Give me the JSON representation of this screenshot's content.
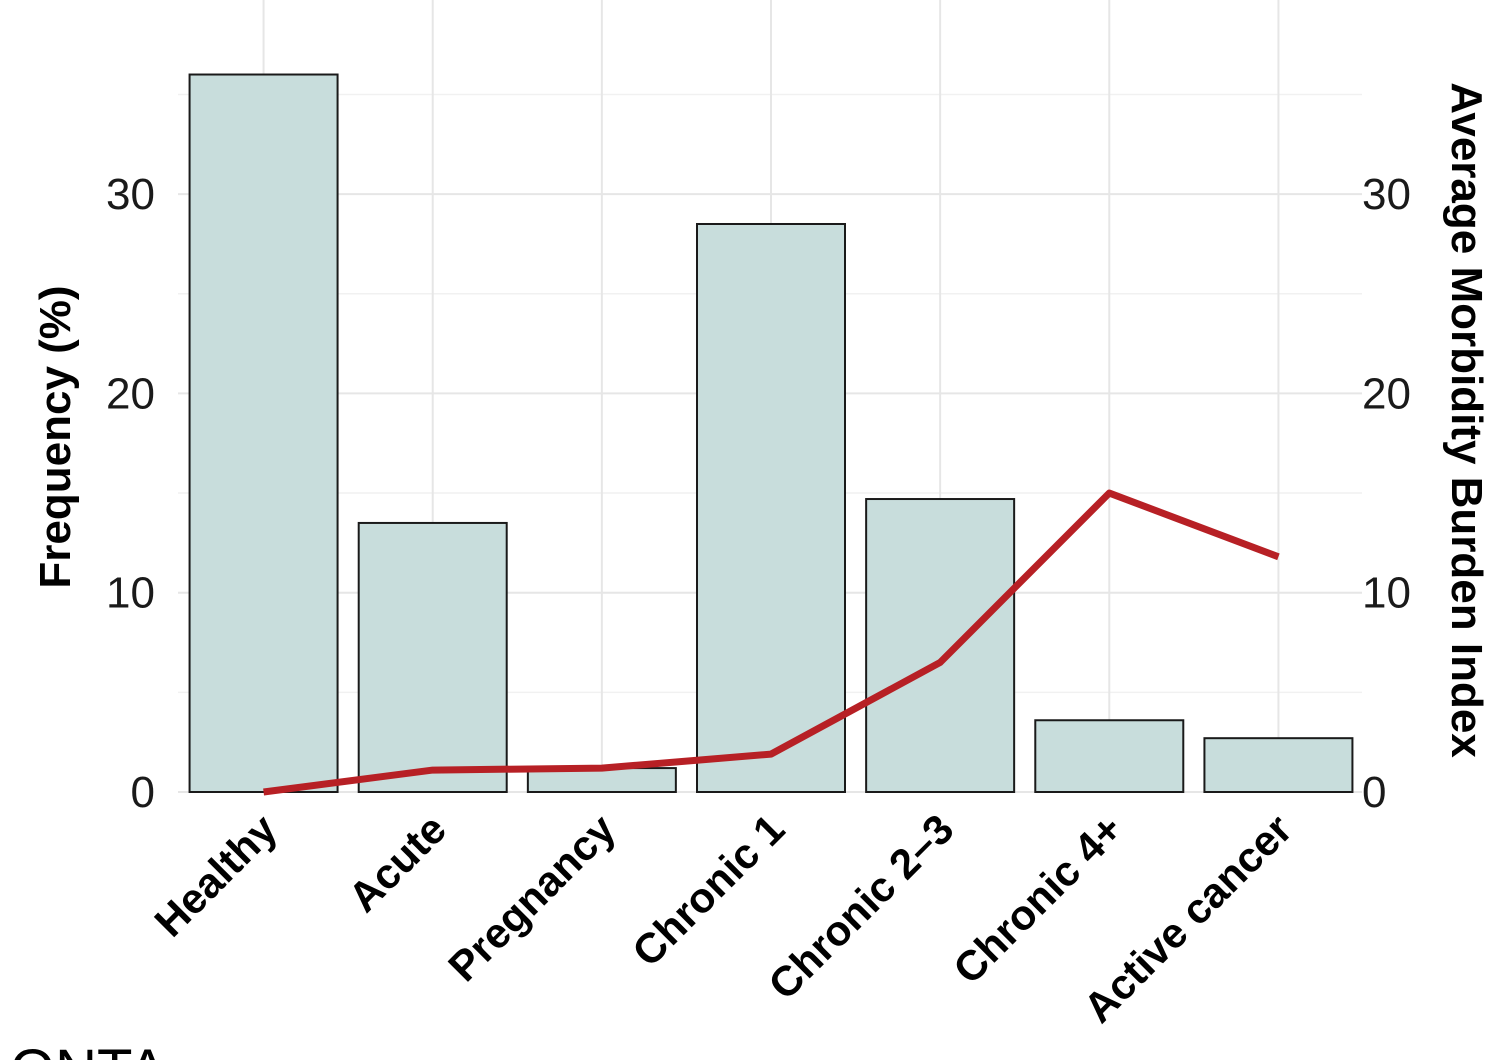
{
  "chart_data": {
    "type": "bar",
    "title": "",
    "categories": [
      "Healthy",
      "Acute",
      "Pregnancy",
      "Chronic 1",
      "Chronic 2–3",
      "Chronic 4+",
      "Active cancer"
    ],
    "series": [
      {
        "type": "bar",
        "axis": "left",
        "values": [
          36,
          13.5,
          1.2,
          28.5,
          14.7,
          3.6,
          2.7
        ],
        "color": "#c8dddc"
      },
      {
        "type": "line",
        "axis": "right",
        "values": [
          0,
          1.1,
          1.2,
          1.9,
          6.5,
          15,
          11.8
        ],
        "color": "#b72025"
      }
    ],
    "ylabel": "Frequency (%)",
    "y2label": "Average Morbidity Burden Index",
    "ylim": [
      0,
      37
    ],
    "y2lim": [
      0,
      37
    ],
    "yticks": [
      0,
      10,
      20,
      30
    ],
    "y2ticks": [
      0,
      10,
      20,
      30
    ],
    "grid": true,
    "legend": "none"
  },
  "footer_fragment": "ONTA"
}
